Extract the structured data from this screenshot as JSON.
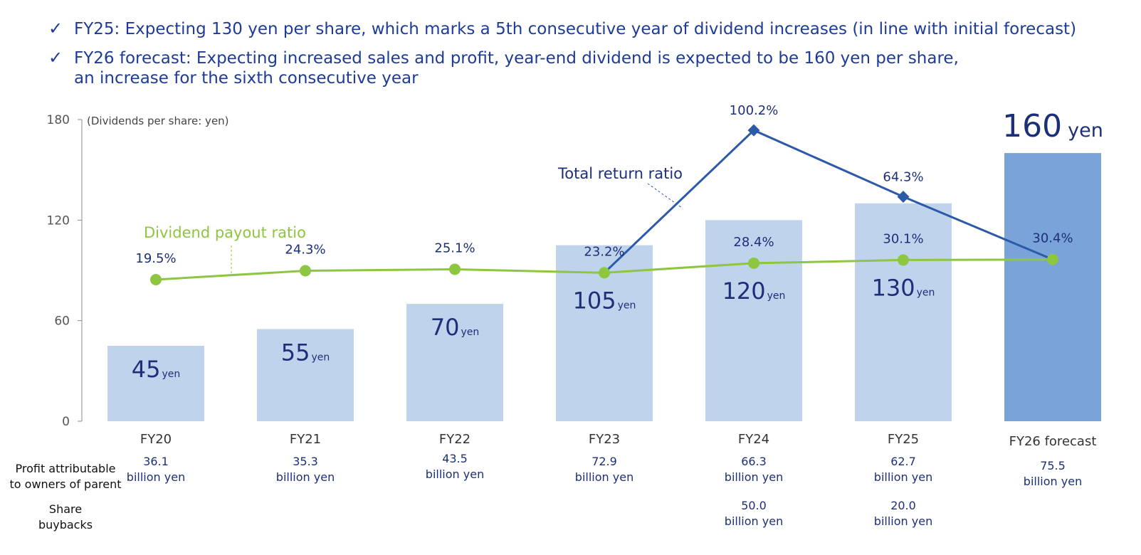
{
  "header": {
    "bullets": [
      {
        "lines": [
          "FY25: Expecting 130 yen per share, which marks a 5th consecutive year of dividend increases (in line with initial forecast)"
        ]
      },
      {
        "lines": [
          "FY26 forecast: Expecting increased sales and profit, year-end dividend is expected to be 160 yen per share,",
          "an increase for the sixth consecutive year"
        ]
      }
    ]
  },
  "chart_data": {
    "type": "bar",
    "y_axis_label": "(Dividends per share: yen)",
    "categories": [
      "FY20",
      "FY21",
      "FY22",
      "FY23",
      "FY24",
      "FY25",
      "FY26 forecast"
    ],
    "values": [
      45,
      55,
      70,
      105,
      120,
      130,
      160
    ],
    "unit": "yen",
    "colors": [
      "#c0d3ed",
      "#c0d3ed",
      "#c0d3ed",
      "#c0d3ed",
      "#c0d3ed",
      "#c0d3ed",
      "#7aa3d9"
    ],
    "ylim": [
      0,
      180
    ],
    "yticks": [
      0,
      60,
      120,
      180
    ],
    "y2lim": [
      -57,
      106
    ],
    "series": [
      {
        "name": "Dividend payout ratio",
        "color": "#8dc63f",
        "axis": "y2",
        "values": [
          19.5,
          24.3,
          25.1,
          23.2,
          28.4,
          30.1,
          30.4
        ],
        "value_labels": [
          "19.5%",
          "24.3%",
          "25.1%",
          "23.2%",
          "28.4%",
          "30.1%",
          "30.4%"
        ]
      },
      {
        "name": "Total return ratio",
        "color": "#2c5aa8",
        "axis": "y2",
        "values": [
          null,
          null,
          null,
          23.2,
          100.2,
          64.3,
          30.4
        ],
        "value_labels": [
          null,
          null,
          null,
          "23.2%",
          "100.2%",
          "64.3%",
          "30.4%"
        ]
      }
    ],
    "rows": [
      {
        "label": [
          "Profit attributable",
          "to owners of parent"
        ],
        "values": [
          36.1,
          35.3,
          43.5,
          72.9,
          66.3,
          62.7,
          75.5
        ],
        "unit": "billion yen"
      },
      {
        "label": [
          "Share",
          "buybacks"
        ],
        "values": [
          null,
          null,
          null,
          null,
          50,
          20,
          null
        ],
        "value_labels": [
          null,
          null,
          null,
          null,
          "50.0",
          "20.0",
          null
        ],
        "unit": "billion yen"
      }
    ]
  }
}
